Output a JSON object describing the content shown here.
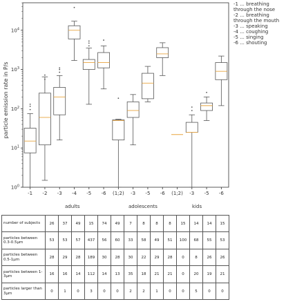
{
  "chart_data": {
    "type": "box",
    "title": "",
    "xlabel": "",
    "ylabel": "particle emission rate in P/s",
    "yscale": "log",
    "ylim": [
      1,
      50000
    ],
    "yticks": [
      "10^0",
      "10^1",
      "10^2",
      "10^3",
      "10^4"
    ],
    "categories": [
      "-1",
      "-2",
      "-3",
      "-4",
      "-5",
      "-6",
      "(1;2)",
      "-3",
      "-5",
      "-6",
      "(1;2)",
      "-3",
      "-5",
      "-6"
    ],
    "groups": [
      "adults",
      "adolescents",
      "kids"
    ],
    "boxes": [
      {
        "label": "-1",
        "whislo": 1.0,
        "q1": 7.5,
        "med": 15,
        "q3": 32,
        "whishi": 75,
        "outliers": [
          95,
          115,
          130
        ]
      },
      {
        "label": "-2",
        "whislo": 1.5,
        "q1": 12,
        "med": 60,
        "q3": 250,
        "whishi": 650,
        "outliers": [
          560,
          720
        ]
      },
      {
        "label": "-3",
        "whislo": 16,
        "q1": 70,
        "med": 200,
        "q3": 350,
        "whishi": 700,
        "outliers": [
          850,
          1000,
          1100
        ]
      },
      {
        "label": "-4",
        "whislo": 1700,
        "q1": 6000,
        "med": 10000,
        "q3": 13000,
        "whishi": 17000,
        "outliers": [
          38000
        ]
      },
      {
        "label": "-5",
        "whislo": 130,
        "q1": 1000,
        "med": 1500,
        "q3": 1800,
        "whishi": 3500,
        "outliers": [
          4000,
          4700,
          5300
        ]
      },
      {
        "label": "-6",
        "whislo": 320,
        "q1": 1100,
        "med": 1500,
        "q3": 2700,
        "whishi": 4000,
        "outliers": [
          5600
        ]
      },
      {
        "label": "(1;2)",
        "whislo": 1.0,
        "q1": 16,
        "med": 50,
        "q3": 52,
        "whishi": 54,
        "outliers": [
          185
        ]
      },
      {
        "label": "-3",
        "whislo": 12,
        "q1": 60,
        "med": 90,
        "q3": 150,
        "whishi": 230,
        "outliers": []
      },
      {
        "label": "-5",
        "whislo": 150,
        "q1": 180,
        "med": 450,
        "q3": 800,
        "whishi": 1200,
        "outliers": []
      },
      {
        "label": "-6",
        "whislo": 700,
        "q1": 2000,
        "med": 2500,
        "q3": 3600,
        "whishi": 4800,
        "outliers": []
      },
      {
        "label": "(1;2)",
        "whislo": null,
        "q1": null,
        "med": 22,
        "q3": null,
        "whishi": null,
        "outliers": []
      },
      {
        "label": "-3",
        "whislo": 1.0,
        "q1": 25,
        "med": 25,
        "q3": 45,
        "whishi": 70,
        "outliers": [
          90,
          110
        ]
      },
      {
        "label": "-5",
        "whislo": 50,
        "q1": 90,
        "med": 120,
        "q3": 140,
        "whishi": 200,
        "outliers": [
          260
        ]
      },
      {
        "label": "-6",
        "whislo": 120,
        "q1": 550,
        "med": 900,
        "q3": 1500,
        "whishi": 2200,
        "outliers": []
      }
    ]
  },
  "legend": [
    "-1 ... breathing through the nose",
    "-2 ... breathing through the mouth",
    "-3 ... speaking",
    "-4 ... coughing",
    "-5 ... singing",
    "-6 ... shouting"
  ],
  "colors": {
    "box": "#555555",
    "median": "#e8a33d",
    "outlier": "#555555",
    "axis": "#333333"
  },
  "table": {
    "rows": [
      {
        "label": "number of subjects",
        "values": [
          "26",
          "37",
          "49",
          "15",
          "74",
          "49",
          "7",
          "8",
          "8",
          "8",
          "15",
          "14",
          "14",
          "15"
        ]
      },
      {
        "label": "particles between 0.3-0.5μm",
        "values": [
          "53",
          "53",
          "57",
          "437",
          "56",
          "60",
          "33",
          "58",
          "49",
          "51",
          "100",
          "68",
          "55",
          "53"
        ]
      },
      {
        "label": "particles between 0.5-1μm",
        "values": [
          "28",
          "29",
          "28",
          "189",
          "30",
          "28",
          "30",
          "22",
          "29",
          "28",
          "0",
          "8",
          "26",
          "26"
        ]
      },
      {
        "label": "particles between 1-3μm",
        "values": [
          "16",
          "16",
          "14",
          "112",
          "14",
          "13",
          "35",
          "18",
          "21",
          "21",
          "0",
          "20",
          "19",
          "21"
        ]
      },
      {
        "label": "particles larger than 3μm",
        "values": [
          "0",
          "1",
          "0",
          "3",
          "0",
          "0",
          "2",
          "2",
          "1",
          "0",
          "0",
          "5",
          "0",
          "0"
        ]
      }
    ]
  }
}
